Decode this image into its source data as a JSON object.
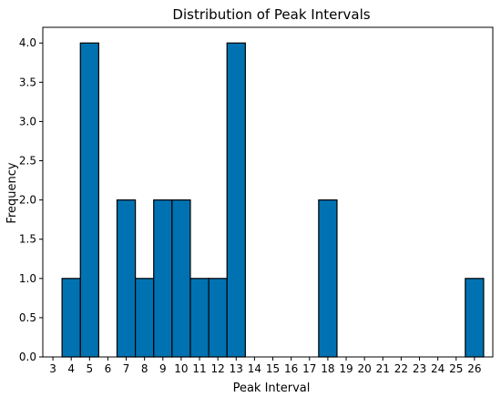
{
  "chart_data": {
    "type": "bar",
    "title": "Distribution of Peak Intervals",
    "xlabel": "Peak Interval",
    "ylabel": "Frequency",
    "x": [
      4,
      5,
      7,
      8,
      9,
      10,
      11,
      12,
      13,
      18,
      26
    ],
    "values": [
      1,
      4,
      2,
      1,
      2,
      2,
      1,
      1,
      4,
      2,
      1
    ],
    "bar_width": 1,
    "xlim": [
      2.45,
      27.0
    ],
    "ylim": [
      0,
      4.2
    ],
    "x_ticks": [
      3,
      4,
      5,
      6,
      7,
      8,
      9,
      10,
      11,
      12,
      13,
      14,
      15,
      16,
      17,
      18,
      19,
      20,
      21,
      22,
      23,
      24,
      25,
      26
    ],
    "y_ticks": [
      0.0,
      0.5,
      1.0,
      1.5,
      2.0,
      2.5,
      3.0,
      3.5,
      4.0
    ],
    "y_tick_labels": [
      "0.0",
      "0.5",
      "1.0",
      "1.5",
      "2.0",
      "2.5",
      "3.0",
      "3.5",
      "4.0"
    ],
    "bar_color": "#0072B2",
    "edge_color": "#000000",
    "grid": false,
    "legend": "none"
  }
}
